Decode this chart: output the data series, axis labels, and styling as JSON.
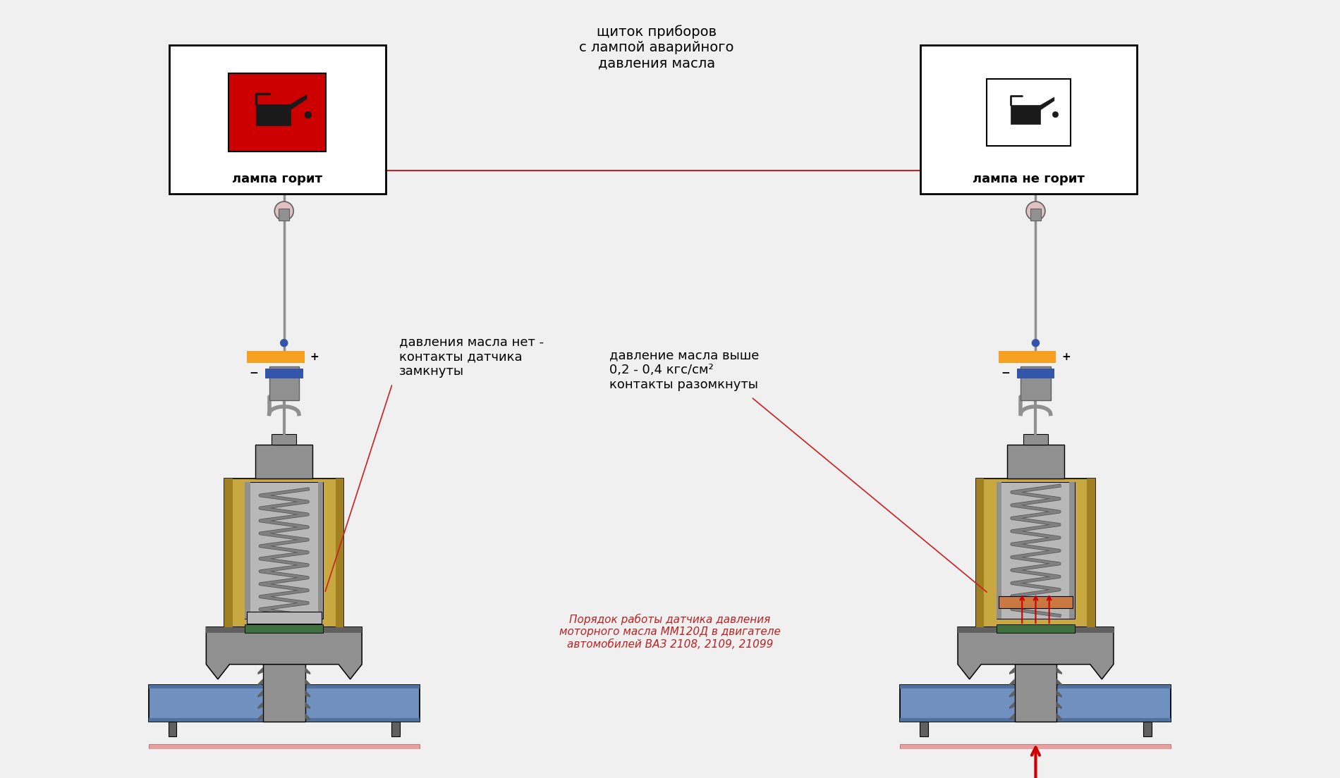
{
  "bg_color": "#f0f0f0",
  "title_text": "щиток приборов\nс лампой аварийного\nдавления масла",
  "label_left": "лампа горит",
  "label_right": "лампа не горит",
  "text_left": "давления масла нет -\nконтакты датчика\nзамкнуты",
  "text_right": "давление масла выше\n0,2 - 0,4 кгс/см²\nконтакты разомкнуты",
  "bottom_text": "Порядок работы датчика давления\nмоторного масла ММ120Д в двигателе\nавтомобилей ВАЗ 2108, 2109, 21099",
  "color_orange": "#F5A020",
  "color_red_line": "#CC2020",
  "color_blue_wire": "#3355AA",
  "color_gold": "#C8A840",
  "color_gold_dark": "#A08020",
  "color_gray": "#909090",
  "color_gray_dark": "#606060",
  "color_gray_light": "#B8B8B8",
  "color_red_box": "#CC0000",
  "color_blue_pipe": "#7090C0",
  "color_blue_pipe_dark": "#5070A0",
  "color_pink": "#E8A0A0",
  "color_green": "#407040",
  "color_red_arrow": "#CC0000",
  "color_spring": "#808080",
  "color_copper": "#C87840"
}
